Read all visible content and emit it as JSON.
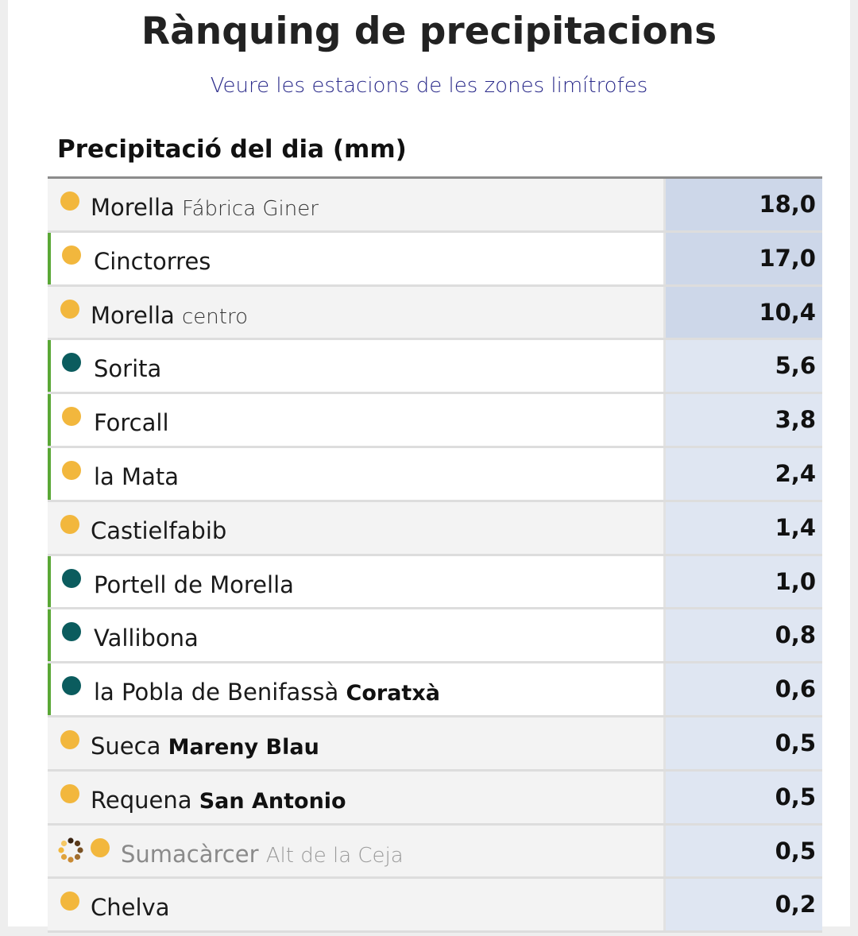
{
  "header": {
    "title": "Rànquing de precipitacions",
    "link_text": "Veure les estacions de les zones limítrofes"
  },
  "section": {
    "title": "Precipitació del dia (mm)"
  },
  "colors": {
    "dot_yellow": "#f2b73d",
    "dot_teal": "#0b5c5e",
    "accent_green": "#5aa836",
    "value_highlight": "#cdd7e9",
    "value_normal": "#dfe6f2"
  },
  "rows": [
    {
      "name": "Morella",
      "sub": "Fábrica Giner",
      "sub_style": "light",
      "value": "18,0",
      "dot": "yellow",
      "green_bar": false,
      "white": false,
      "top": true,
      "loading": false
    },
    {
      "name": "Cinctorres",
      "sub": "",
      "sub_style": "",
      "value": "17,0",
      "dot": "yellow",
      "green_bar": true,
      "white": true,
      "top": true,
      "loading": false
    },
    {
      "name": "Morella",
      "sub": "centro",
      "sub_style": "light",
      "value": "10,4",
      "dot": "yellow",
      "green_bar": false,
      "white": false,
      "top": true,
      "loading": false
    },
    {
      "name": "Sorita",
      "sub": "",
      "sub_style": "",
      "value": "5,6",
      "dot": "teal",
      "green_bar": true,
      "white": true,
      "top": false,
      "loading": false
    },
    {
      "name": "Forcall",
      "sub": "",
      "sub_style": "",
      "value": "3,8",
      "dot": "yellow",
      "green_bar": true,
      "white": true,
      "top": false,
      "loading": false
    },
    {
      "name": "la Mata",
      "sub": "",
      "sub_style": "",
      "value": "2,4",
      "dot": "yellow",
      "green_bar": true,
      "white": true,
      "top": false,
      "loading": false
    },
    {
      "name": "Castielfabib",
      "sub": "",
      "sub_style": "",
      "value": "1,4",
      "dot": "yellow",
      "green_bar": false,
      "white": false,
      "top": false,
      "loading": false
    },
    {
      "name": "Portell de Morella",
      "sub": "",
      "sub_style": "",
      "value": "1,0",
      "dot": "teal",
      "green_bar": true,
      "white": true,
      "top": false,
      "loading": false
    },
    {
      "name": "Vallibona",
      "sub": "",
      "sub_style": "",
      "value": "0,8",
      "dot": "teal",
      "green_bar": true,
      "white": true,
      "top": false,
      "loading": false
    },
    {
      "name": "la Pobla de Benifassà",
      "sub": "Coratxà",
      "sub_style": "bold",
      "value": "0,6",
      "dot": "teal",
      "green_bar": true,
      "white": true,
      "top": false,
      "loading": false
    },
    {
      "name": "Sueca",
      "sub": "Mareny Blau",
      "sub_style": "bold",
      "value": "0,5",
      "dot": "yellow",
      "green_bar": false,
      "white": false,
      "top": false,
      "loading": false
    },
    {
      "name": "Requena",
      "sub": "San Antonio",
      "sub_style": "bold",
      "value": "0,5",
      "dot": "yellow",
      "green_bar": false,
      "white": false,
      "top": false,
      "loading": false
    },
    {
      "name": "Sumacàrcer",
      "sub": "Alt de la Ceja",
      "sub_style": "light",
      "value": "0,5",
      "dot": "yellow",
      "green_bar": false,
      "white": false,
      "top": false,
      "loading": true
    },
    {
      "name": "Chelva",
      "sub": "",
      "sub_style": "",
      "value": "0,2",
      "dot": "yellow",
      "green_bar": false,
      "white": false,
      "top": false,
      "loading": false
    }
  ]
}
